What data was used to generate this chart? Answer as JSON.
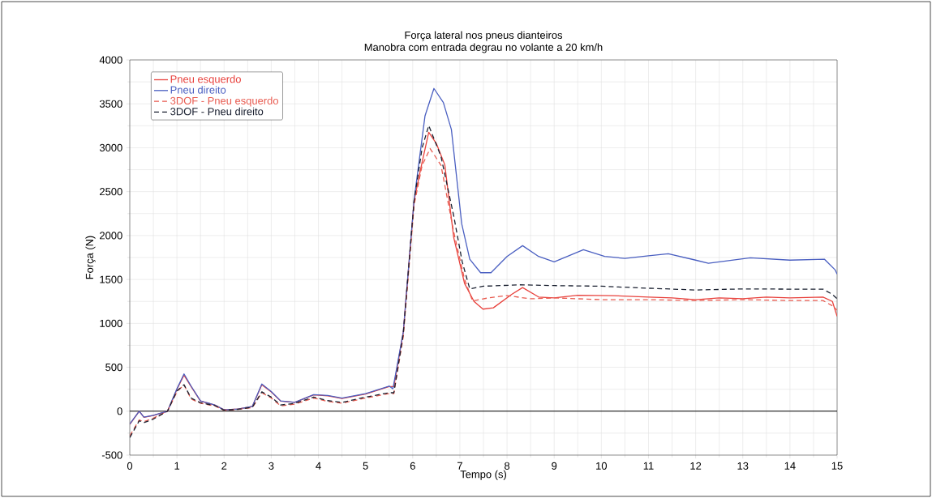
{
  "chart_data": {
    "type": "line",
    "title": "Força lateral nos pneus dianteiros",
    "subtitle": "Manobra com entrada degrau no volante a 20 km/h",
    "xlabel": "Tempo (s)",
    "ylabel": "Força (N)",
    "xlim": [
      0,
      15
    ],
    "ylim": [
      -500,
      4000
    ],
    "xticks": [
      0,
      1,
      2,
      3,
      4,
      5,
      6,
      7,
      8,
      9,
      10,
      11,
      12,
      13,
      14,
      15
    ],
    "yticks": [
      -500,
      0,
      500,
      1000,
      1500,
      2000,
      2500,
      3000,
      3500,
      4000
    ],
    "grid": true,
    "legend": "top left",
    "marker": "none",
    "ref_lines": [
      {
        "axis": "y",
        "value": 0,
        "color": "#000000"
      }
    ],
    "series": [
      {
        "name": "Pneu esquerdo",
        "color": "#e8413c",
        "line_style": "solid",
        "x": [
          0,
          0.2,
          0.3,
          0.5,
          0.8,
          1.0,
          1.15,
          1.3,
          1.5,
          1.8,
          2.0,
          2.3,
          2.6,
          2.8,
          3.0,
          3.2,
          3.5,
          3.9,
          4.2,
          4.5,
          5.0,
          5.5,
          5.6,
          5.8,
          6.03,
          6.2,
          6.34,
          6.5,
          6.68,
          6.87,
          7.1,
          7.3,
          7.49,
          7.71,
          8.1,
          8.33,
          8.67,
          9.0,
          9.5,
          10.24,
          11,
          11.5,
          12,
          12.5,
          13,
          13.5,
          14,
          14.7,
          14.9,
          15
        ],
        "values": [
          -150,
          0,
          -70,
          -50,
          0,
          250,
          410,
          280,
          115,
          70,
          15,
          25,
          55,
          300,
          220,
          115,
          100,
          185,
          175,
          145,
          195,
          280,
          280,
          900,
          2400,
          2838,
          3176,
          3050,
          2807,
          1977,
          1454,
          1250,
          1162,
          1177,
          1331,
          1408,
          1300,
          1290,
          1320,
          1316,
          1300,
          1290,
          1270,
          1290,
          1280,
          1300,
          1290,
          1300,
          1250,
          1080
        ]
      },
      {
        "name": "Pneu direito",
        "color": "#4a5fc1",
        "line_style": "solid",
        "x": [
          0,
          0.2,
          0.3,
          0.5,
          0.8,
          1.0,
          1.15,
          1.3,
          1.5,
          1.8,
          2.0,
          2.3,
          2.6,
          2.8,
          3.0,
          3.2,
          3.5,
          3.9,
          4.2,
          4.5,
          5.0,
          5.5,
          5.58,
          5.8,
          6.03,
          6.26,
          6.45,
          6.65,
          6.82,
          7.04,
          7.21,
          7.44,
          7.66,
          8.0,
          8.33,
          8.67,
          9.0,
          9.62,
          10.07,
          10.5,
          11,
          11.42,
          12,
          12.27,
          13.16,
          14,
          14.73,
          14.96,
          15
        ],
        "values": [
          -145,
          0,
          -68,
          -46,
          0,
          255,
          424,
          286,
          117,
          71,
          15,
          25,
          55,
          310,
          224,
          117,
          101,
          188,
          178,
          148,
          200,
          286,
          255,
          900,
          2408,
          3361,
          3675,
          3515,
          3208,
          2131,
          1731,
          1577,
          1577,
          1762,
          1885,
          1762,
          1700,
          1838,
          1762,
          1740,
          1770,
          1793,
          1720,
          1685,
          1747,
          1720,
          1731,
          1608,
          1560
        ]
      },
      {
        "name": "3DOF - Pneu esquerdo",
        "color": "#e85a4f",
        "line_style": "dashed",
        "x": [
          0,
          0.2,
          0.3,
          0.5,
          0.8,
          1.0,
          1.15,
          1.3,
          1.5,
          1.8,
          2.0,
          2.3,
          2.6,
          2.8,
          3.0,
          3.2,
          3.5,
          3.9,
          4.2,
          4.5,
          5.0,
          5.5,
          5.6,
          5.8,
          6.03,
          6.2,
          6.37,
          6.6,
          6.87,
          7.1,
          7.27,
          7.6,
          8.0,
          8.5,
          9.0,
          10,
          11,
          12,
          13,
          14,
          14.7,
          14.9,
          15
        ],
        "values": [
          -280,
          -100,
          -120,
          -80,
          0,
          220,
          300,
          140,
          90,
          60,
          10,
          20,
          40,
          210,
          150,
          60,
          80,
          150,
          110,
          90,
          150,
          200,
          200,
          850,
          2350,
          2800,
          2990,
          2800,
          2040,
          1500,
          1254,
          1290,
          1316,
          1280,
          1290,
          1270,
          1270,
          1260,
          1270,
          1260,
          1260,
          1200,
          1150
        ]
      },
      {
        "name": "3DOF - Pneu direito",
        "color": "#1a2030",
        "line_style": "dashed",
        "x": [
          0,
          0.2,
          0.3,
          0.5,
          0.8,
          1.0,
          1.15,
          1.3,
          1.5,
          1.8,
          2.0,
          2.3,
          2.6,
          2.8,
          3.0,
          3.2,
          3.5,
          3.9,
          4.2,
          4.5,
          5.0,
          5.5,
          5.6,
          5.8,
          6.03,
          6.2,
          6.34,
          6.6,
          6.87,
          7.05,
          7.21,
          7.5,
          8.28,
          9.0,
          10,
          11,
          12,
          13,
          14,
          14.7,
          14.9,
          15
        ],
        "values": [
          -300,
          -110,
          -130,
          -90,
          0,
          230,
          301,
          150,
          95,
          65,
          12,
          22,
          45,
          220,
          160,
          70,
          90,
          160,
          120,
          100,
          160,
          210,
          210,
          880,
          2400,
          3000,
          3253,
          2900,
          2223,
          1700,
          1393,
          1423,
          1439,
          1430,
          1423,
          1400,
          1380,
          1392,
          1390,
          1390,
          1330,
          1280
        ]
      }
    ]
  }
}
